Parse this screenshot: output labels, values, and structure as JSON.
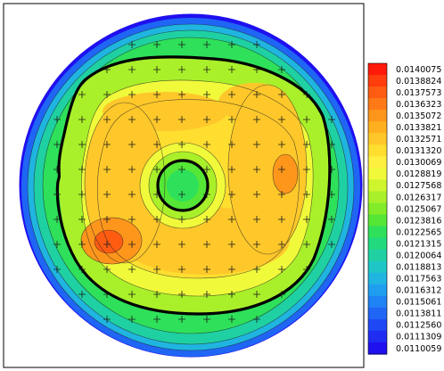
{
  "chart_data": {
    "type": "heatmap",
    "subtype": "filled-contour-circular",
    "title": "",
    "xlabel": "",
    "ylabel": "",
    "grid": false,
    "legend_position": "right",
    "colorbar": {
      "min": 0.0110059,
      "max": 0.0140075,
      "tick_labels": [
        "0.0140075",
        "0.0138824",
        "0.0137573",
        "0.0136323",
        "0.0135072",
        "0.0133821",
        "0.0132571",
        "0.0131320",
        "0.0130069",
        "0.0128819",
        "0.0127568",
        "0.0126317",
        "0.0125067",
        "0.0123816",
        "0.0122565",
        "0.0121315",
        "0.0120064",
        "0.0118813",
        "0.0117563",
        "0.0116312",
        "0.0115061",
        "0.0113811",
        "0.0112560",
        "0.0111309",
        "0.0110059"
      ],
      "colors": [
        "#ff1a0a",
        "#ff3d0d",
        "#ff5c12",
        "#ff7a17",
        "#ff961c",
        "#ffb01f",
        "#ffc82a",
        "#ffde30",
        "#fff040",
        "#f0fa3a",
        "#cef52e",
        "#aaf02a",
        "#82eb2a",
        "#55e636",
        "#2ee05a",
        "#22d97e",
        "#1fd1a2",
        "#1fc6c6",
        "#1fb5e0",
        "#1f9ef0",
        "#1f82f5",
        "#1f66f5",
        "#1f48f5",
        "#1f2cf2",
        "#1f10ef"
      ]
    },
    "features": [
      {
        "name": "outer-ring-min",
        "value": 0.0110059
      },
      {
        "name": "center-ring",
        "value": 0.0122565
      },
      {
        "name": "main-plateau",
        "value": 0.0132571
      },
      {
        "name": "left-peak",
        "value": 0.0136323
      },
      {
        "name": "right-peak",
        "value": 0.0134
      }
    ]
  }
}
